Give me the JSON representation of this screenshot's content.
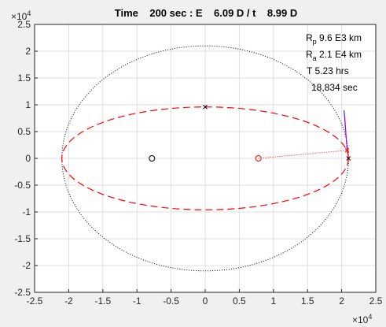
{
  "chart_data": {
    "type": "line",
    "title": "Time    200 sec : E    6.09 D / t    8.99 D",
    "xlabel": "",
    "ylabel": "",
    "xlim": [
      -25000,
      25000
    ],
    "ylim": [
      -25000,
      25000
    ],
    "x_exponent": "×10",
    "x_exponent_power": "4",
    "y_exponent": "×10",
    "y_exponent_power": "4",
    "xticks": [
      -25000,
      -20000,
      -15000,
      -10000,
      -5000,
      0,
      5000,
      10000,
      15000,
      20000,
      25000
    ],
    "xtick_labels": [
      "-2.5",
      "-2",
      "-1.5",
      "-1",
      "-0.5",
      "0",
      "0.5",
      "1",
      "1.5",
      "2",
      "2.5"
    ],
    "yticks": [
      25000,
      20000,
      15000,
      10000,
      5000,
      0,
      -5000,
      -10000,
      -15000,
      -20000,
      -25000
    ],
    "ytick_labels": [
      "2.5",
      "2",
      "1.5",
      "1",
      "0.5",
      "0",
      "-0.5",
      "-1",
      "-1.5",
      "-2",
      "-2.5"
    ],
    "grid": true,
    "ellipses": [
      {
        "name": "outer-ellipse",
        "cx": 0,
        "cy": 0,
        "rx": 21000,
        "ry": 21000,
        "color": "#000000",
        "style": "dotted"
      },
      {
        "name": "transfer-ellipse",
        "cx": 0,
        "cy": 0,
        "rx": 21000,
        "ry": 9600,
        "color": "#ff0000",
        "style": "dashed"
      }
    ],
    "markers": [
      {
        "name": "black-circle-marker",
        "x": -7800,
        "y": 0,
        "symbol": "circle",
        "color": "#000000"
      },
      {
        "name": "red-circle-marker",
        "x": 7800,
        "y": 0,
        "symbol": "circle",
        "color": "#ff0000"
      },
      {
        "name": "top-x-marker",
        "x": 0,
        "y": 9600,
        "symbol": "x",
        "color": "#000000"
      },
      {
        "name": "right-x-marker",
        "x": 21000,
        "y": 0,
        "symbol": "x",
        "color": "#000000"
      },
      {
        "name": "red-x-marker",
        "x": 20800,
        "y": 1500,
        "symbol": "x",
        "color": "#ff0000"
      }
    ],
    "lines": [
      {
        "name": "focus-line",
        "x": [
          7800,
          20800
        ],
        "y": [
          0,
          1500
        ],
        "color": "#ff0000",
        "style": "dotted"
      },
      {
        "name": "velocity-vector-blue",
        "x": [
          20800,
          20350
        ],
        "y": [
          1500,
          9000
        ],
        "color": "#0000ff",
        "style": "solid"
      },
      {
        "name": "velocity-vector-magenta",
        "x": [
          20800,
          20450
        ],
        "y": [
          1500,
          8000
        ],
        "color": "#cc00cc",
        "style": "solid"
      }
    ],
    "annotations": [
      {
        "name": "rp-annotation",
        "main": "R",
        "sub": "p",
        "rest": " 9.6 E3 km"
      },
      {
        "name": "ra-annotation",
        "main": "R",
        "sub": "a",
        "rest": " 2.1 E4 km"
      },
      {
        "name": "period-annotation",
        "main": "T     5.23 hrs",
        "sub": "",
        "rest": ""
      },
      {
        "name": "period-seconds-annotation",
        "main": "18,834 sec",
        "sub": "",
        "rest": ""
      }
    ]
  }
}
